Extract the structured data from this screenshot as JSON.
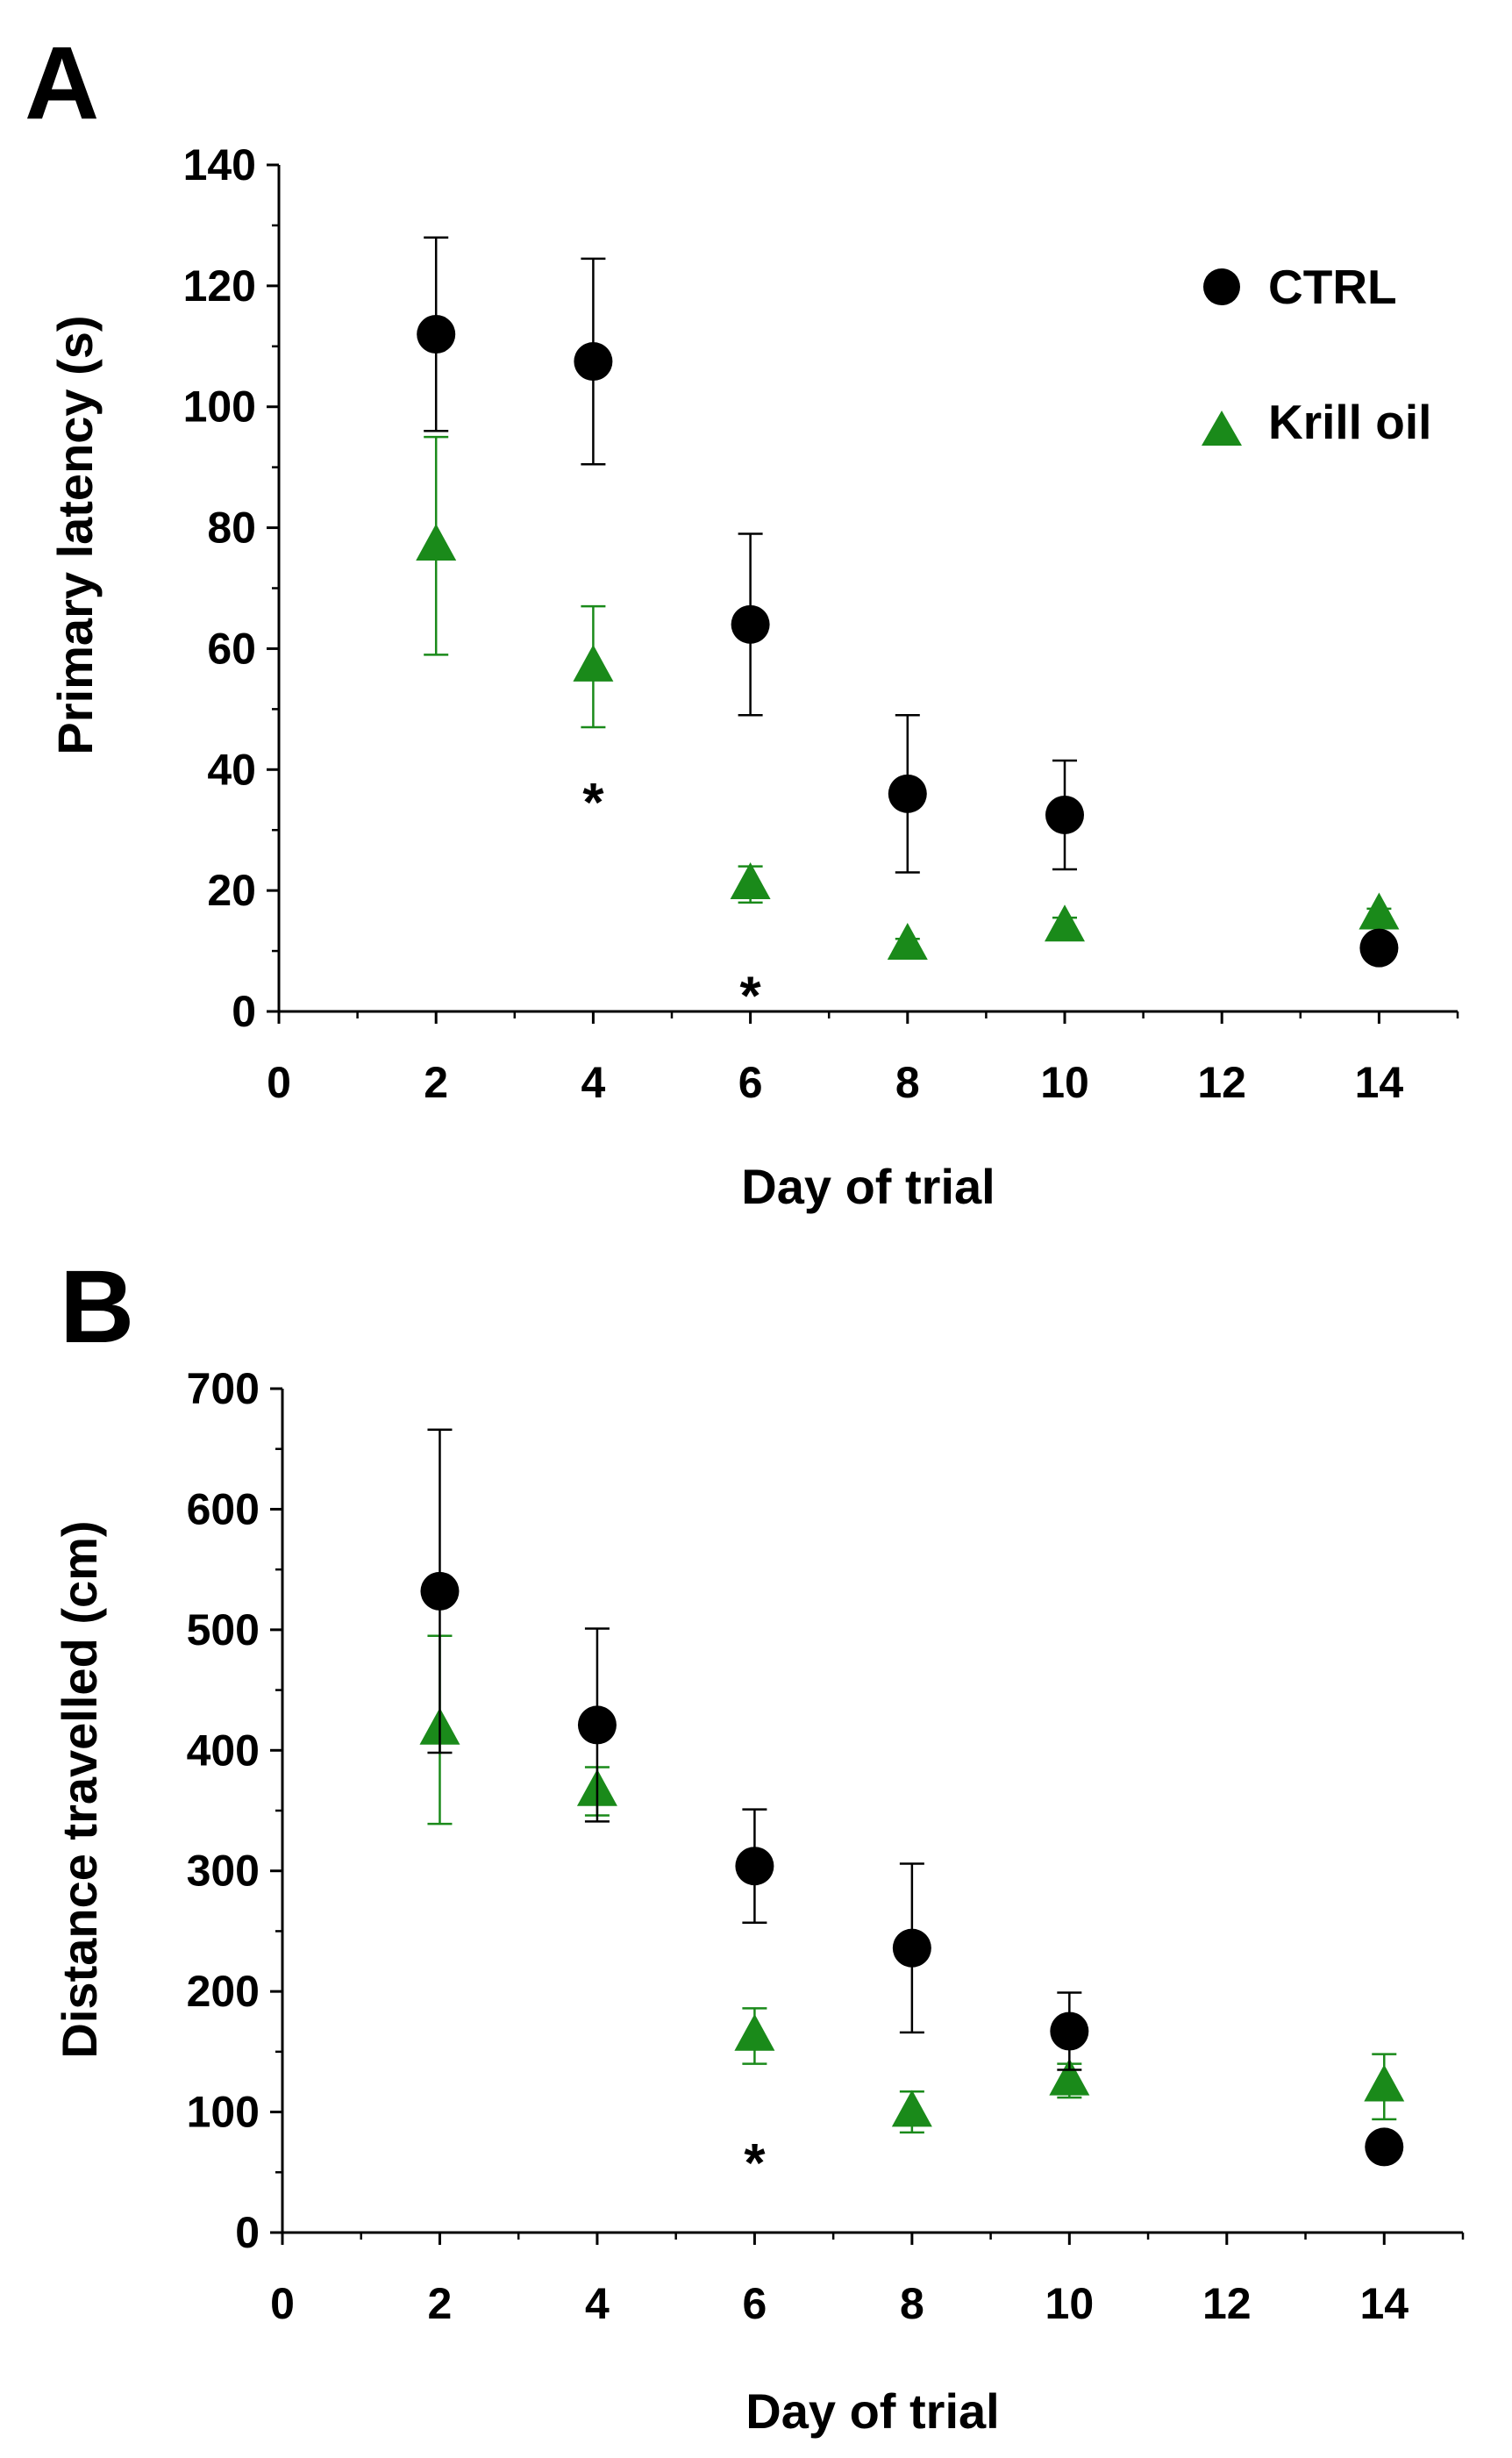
{
  "colors": {
    "ctrl": "#000000",
    "krill": "#1a8a1a",
    "axis": "#000000"
  },
  "legend": [
    {
      "label": "CTRL",
      "marker": "circle",
      "color": "#000000"
    },
    {
      "label": "Krill oil",
      "marker": "triangle",
      "color": "#1a8a1a"
    }
  ],
  "chart_data": [
    {
      "panel_label": "A",
      "type": "scatter",
      "xlabel": "Day of trial",
      "ylabel": "Primary latency (s)",
      "xlim": [
        0,
        15
      ],
      "ylim": [
        0,
        140
      ],
      "xticks": [
        0,
        2,
        4,
        6,
        8,
        10,
        12,
        14
      ],
      "yticks": [
        0,
        20,
        40,
        60,
        80,
        100,
        120,
        140
      ],
      "series": [
        {
          "name": "CTRL",
          "marker": "circle",
          "x": [
            2,
            4,
            6,
            8,
            10,
            14
          ],
          "y": [
            112,
            107.5,
            64,
            36,
            32.5,
            10.5
          ],
          "err": [
            16,
            17,
            15,
            13,
            9,
            0
          ]
        },
        {
          "name": "Krill oil",
          "marker": "triangle",
          "x": [
            2,
            4,
            6,
            8,
            10,
            14
          ],
          "y": [
            77,
            57,
            21,
            11,
            14,
            16
          ],
          "err": [
            18,
            10,
            3,
            1,
            1.5,
            1
          ]
        }
      ],
      "annotations": [
        {
          "x": 4,
          "y": 37,
          "text": "*"
        },
        {
          "x": 6,
          "y": 5,
          "text": "*"
        }
      ]
    },
    {
      "panel_label": "B",
      "type": "scatter",
      "xlabel": "Day of trial",
      "ylabel": "Distance travelled (cm)",
      "xlim": [
        0,
        15
      ],
      "ylim": [
        0,
        700
      ],
      "xticks": [
        0,
        2,
        4,
        6,
        8,
        10,
        12,
        14
      ],
      "yticks": [
        0,
        100,
        200,
        300,
        400,
        500,
        600,
        700
      ],
      "series": [
        {
          "name": "CTRL",
          "marker": "circle",
          "x": [
            2,
            4,
            6,
            8,
            10,
            14
          ],
          "y": [
            532,
            421,
            304,
            236,
            167,
            71
          ],
          "err": [
            134,
            80,
            47,
            70,
            32,
            0
          ]
        },
        {
          "name": "Krill oil",
          "marker": "triangle",
          "x": [
            2,
            4,
            6,
            8,
            10,
            14
          ],
          "y": [
            417,
            366,
            163,
            100,
            126,
            121
          ],
          "err": [
            78,
            20,
            23,
            17,
            14,
            27
          ]
        }
      ],
      "annotations": [
        {
          "x": 6,
          "y": 70,
          "text": "*"
        }
      ]
    }
  ]
}
